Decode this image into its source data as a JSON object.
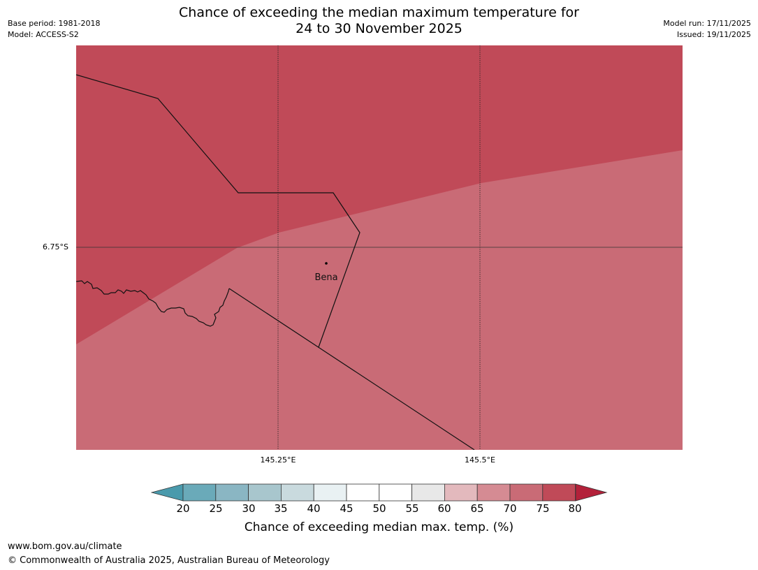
{
  "header": {
    "title_line1": "Chance of exceeding the median maximum temperature for",
    "title_line2": "24 to 30 November 2025",
    "base_period": "Base period: 1981-2018",
    "model": "Model: ACCESS-S2",
    "model_run": "Model run: 17/11/2025",
    "issued": "Issued: 19/11/2025"
  },
  "map": {
    "lat_label": "6.75°S",
    "lon_labels": [
      "145.25°E",
      "145.5°E"
    ],
    "place_label": "Bena",
    "zones": [
      {
        "category": "75-80",
        "color": "#c04a58"
      },
      {
        "category": "70-75",
        "color": "#c96b76"
      }
    ]
  },
  "colorbar": {
    "ticks": [
      "20",
      "25",
      "30",
      "35",
      "40",
      "45",
      "50",
      "55",
      "60",
      "65",
      "70",
      "75",
      "80"
    ],
    "colors": [
      "#6aaab9",
      "#8ab6c3",
      "#a8c6cd",
      "#c9dade",
      "#e9f1f3",
      "#ffffff",
      "#ffffff",
      "#e8e8e8",
      "#e3b9bd",
      "#d58b93",
      "#c96b76",
      "#c04a58"
    ],
    "under_color": "#4a9aac",
    "over_color": "#b3213a",
    "label": "Chance of exceeding median max. temp. (%)"
  },
  "footer": {
    "url": "www.bom.gov.au/climate",
    "copyright": "© Commonwealth of Australia 2025, Australian Bureau of Meteorology"
  }
}
